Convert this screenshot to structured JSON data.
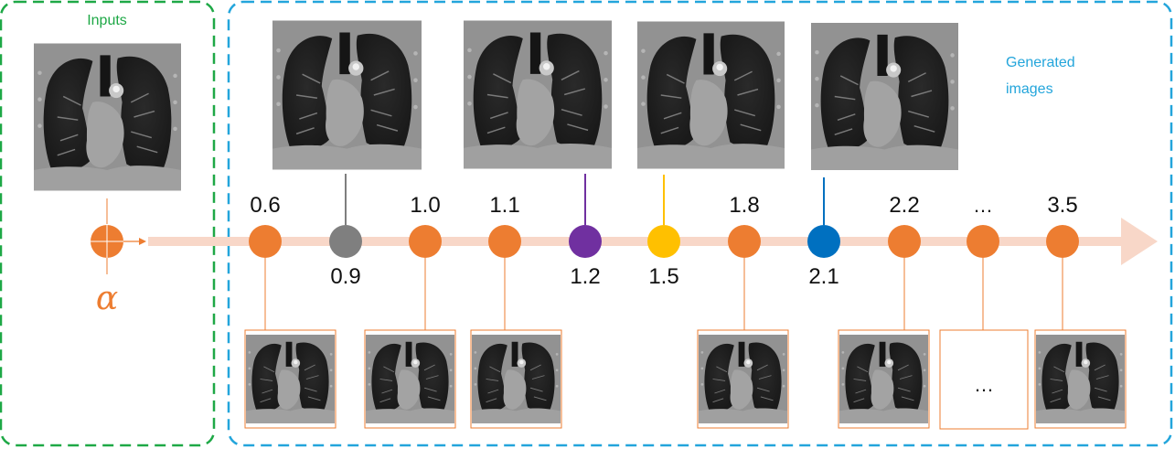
{
  "inputs_label": "Inputs",
  "generated_label_line1": "Generated",
  "generated_label_line2": "images",
  "alpha_symbol": "α",
  "ellipsis_top": "…",
  "ellipsis_box": "…",
  "colors": {
    "inputs_border": "#1ea846",
    "generated_border": "#23a5db",
    "orange": "#ed7d31",
    "gray": "#7f7f7f",
    "purple": "#7030a0",
    "yellow": "#ffc000",
    "blue": "#0070c0",
    "axis": "#f8d7c8"
  },
  "nodes": [
    {
      "value": "0.6",
      "color": "orange"
    },
    {
      "value": "0.9",
      "color": "gray"
    },
    {
      "value": "1.0",
      "color": "orange"
    },
    {
      "value": "1.1",
      "color": "orange"
    },
    {
      "value": "1.2",
      "color": "purple"
    },
    {
      "value": "1.5",
      "color": "yellow"
    },
    {
      "value": "1.8",
      "color": "orange"
    },
    {
      "value": "2.1",
      "color": "blue"
    },
    {
      "value": "2.2",
      "color": "orange"
    },
    {
      "value": "…",
      "color": "orange"
    },
    {
      "value": "3.5",
      "color": "orange"
    }
  ]
}
